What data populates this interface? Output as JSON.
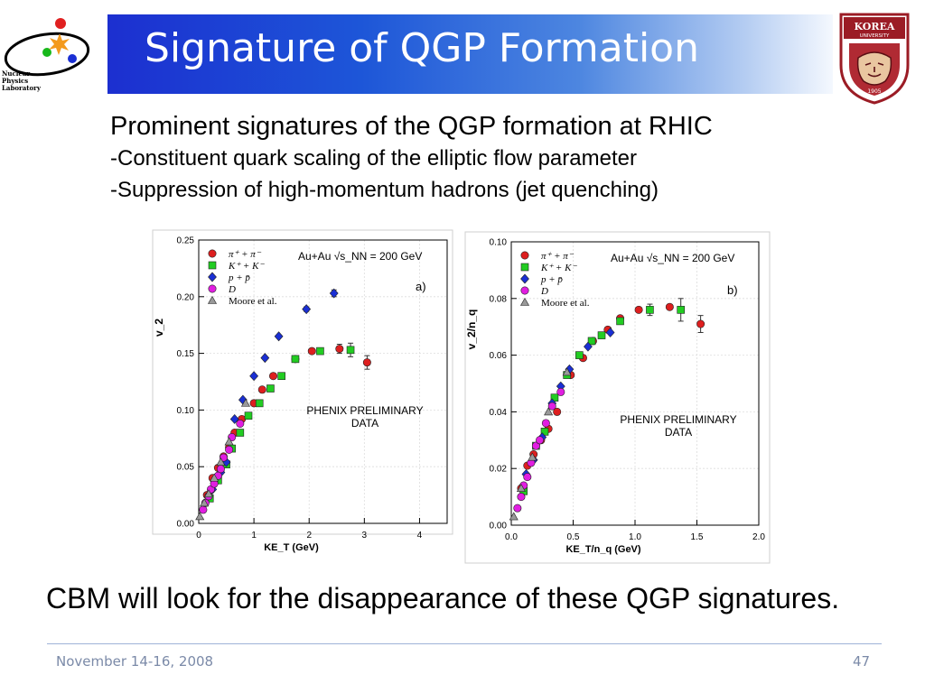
{
  "header": {
    "title": "Signature of QGP Formation",
    "logo_left_lines": [
      "Nuclear",
      "Physics",
      "Laboratory"
    ],
    "logo_right_top": "KOREA",
    "logo_right_sub": "UNIVERSITY",
    "logo_right_year": "1905"
  },
  "body": {
    "line1": "Prominent signatures of the QGP formation at RHIC",
    "line2": "-Constituent quark scaling of the elliptic flow parameter",
    "line3": "-Suppression of high-momentum hadrons (jet quenching)",
    "conclusion": "CBM will look for the disappearance of these QGP signatures."
  },
  "footer": {
    "date": "November 14-16, 2008",
    "page": "47"
  },
  "colors": {
    "pion": "#dd1f1f",
    "kaon": "#22cc22",
    "proton": "#1a2fd4",
    "dmeson": "#e11ee1",
    "moore": "#999999",
    "title_bg": "#1d4ed8"
  },
  "chart_data": [
    {
      "type": "scatter",
      "panel_label": "a)",
      "title": "Au+Au  √s_NN = 200 GeV",
      "annotation": [
        "PHENIX PRELIMINARY",
        "DATA"
      ],
      "xlabel": "KE_T (GeV)",
      "ylabel": "v_2",
      "xlim": [
        0,
        4.5
      ],
      "ylim": [
        0,
        0.25
      ],
      "xticks": [
        "0",
        "1",
        "2",
        "3",
        "4"
      ],
      "yticks": [
        "0.00",
        "0.05",
        "0.10",
        "0.15",
        "0.20",
        "0.25"
      ],
      "xtick_values": [
        0,
        1,
        2,
        3,
        4
      ],
      "ytick_values": [
        0,
        0.05,
        0.1,
        0.15,
        0.2,
        0.25
      ],
      "legend_position": "top-left",
      "series": [
        {
          "name": "π⁺ + π⁻",
          "marker": "circle",
          "color": "#dd1f1f",
          "x": [
            0.15,
            0.25,
            0.35,
            0.45,
            0.55,
            0.65,
            0.78,
            1.0,
            1.15,
            1.35,
            1.75,
            2.05,
            2.55,
            3.05
          ],
          "y": [
            0.025,
            0.04,
            0.049,
            0.059,
            0.067,
            0.08,
            0.092,
            0.106,
            0.118,
            0.13,
            0.145,
            0.152,
            0.154,
            0.142
          ],
          "err": [
            0,
            0,
            0,
            0,
            0,
            0,
            0,
            0,
            0,
            0,
            0,
            0,
            0.004,
            0.006
          ]
        },
        {
          "name": "K⁺ + K⁻",
          "marker": "square",
          "color": "#22cc22",
          "x": [
            0.2,
            0.35,
            0.5,
            0.6,
            0.75,
            0.9,
            1.1,
            1.3,
            1.5,
            1.75,
            2.2,
            2.75
          ],
          "y": [
            0.022,
            0.038,
            0.052,
            0.066,
            0.08,
            0.095,
            0.106,
            0.119,
            0.13,
            0.145,
            0.152,
            0.153
          ],
          "err": [
            0,
            0,
            0,
            0,
            0,
            0,
            0,
            0,
            0,
            0,
            0,
            0.006
          ]
        },
        {
          "name": "p + p̄",
          "marker": "diamond",
          "color": "#1a2fd4",
          "x": [
            0.25,
            0.4,
            0.5,
            0.65,
            0.8,
            1.0,
            1.2,
            1.45,
            1.95,
            2.45
          ],
          "y": [
            0.03,
            0.045,
            0.054,
            0.092,
            0.109,
            0.13,
            0.146,
            0.165,
            0.189,
            0.203
          ],
          "err": [
            0,
            0,
            0,
            0,
            0,
            0,
            0,
            0,
            0.002,
            0.003
          ]
        },
        {
          "name": "D",
          "marker": "circle",
          "color": "#e11ee1",
          "x": [
            0.08,
            0.12,
            0.18,
            0.22,
            0.28,
            0.35,
            0.4,
            0.45,
            0.55,
            0.6,
            0.75
          ],
          "y": [
            0.012,
            0.018,
            0.024,
            0.03,
            0.035,
            0.042,
            0.048,
            0.058,
            0.065,
            0.076,
            0.088
          ],
          "err": [
            0,
            0,
            0,
            0,
            0,
            0,
            0,
            0,
            0,
            0,
            0
          ]
        },
        {
          "name": "Moore  et al.",
          "marker": "triangle",
          "color": "#999999",
          "x": [
            0.02,
            0.1,
            0.18,
            0.28,
            0.4,
            0.55,
            0.85
          ],
          "y": [
            0.006,
            0.018,
            0.026,
            0.04,
            0.054,
            0.072,
            0.106
          ],
          "err": [
            0,
            0,
            0,
            0,
            0,
            0,
            0
          ]
        }
      ]
    },
    {
      "type": "scatter",
      "panel_label": "b)",
      "title": "Au+Au  √s_NN = 200 GeV",
      "annotation": [
        "PHENIX PRELIMINARY",
        "DATA"
      ],
      "xlabel": "KE_T/n_q (GeV)",
      "ylabel": "v_2/n_q",
      "xlim": [
        0,
        2.0
      ],
      "ylim": [
        0,
        0.1
      ],
      "xticks": [
        "0.0",
        "0.5",
        "1.0",
        "1.5",
        "2.0"
      ],
      "yticks": [
        "0.00",
        "0.02",
        "0.04",
        "0.06",
        "0.08",
        "0.10"
      ],
      "xtick_values": [
        0,
        0.5,
        1.0,
        1.5,
        2.0
      ],
      "ytick_values": [
        0,
        0.02,
        0.04,
        0.06,
        0.08,
        0.1
      ],
      "legend_position": "top-left",
      "series": [
        {
          "name": "π⁺ + π⁻",
          "marker": "circle",
          "color": "#dd1f1f",
          "x": [
            0.08,
            0.13,
            0.18,
            0.24,
            0.3,
            0.37,
            0.48,
            0.58,
            0.66,
            0.78,
            0.88,
            1.03,
            1.28,
            1.53
          ],
          "y": [
            0.013,
            0.021,
            0.025,
            0.03,
            0.034,
            0.04,
            0.053,
            0.059,
            0.065,
            0.069,
            0.073,
            0.076,
            0.077,
            0.071
          ],
          "err": [
            0,
            0,
            0,
            0,
            0,
            0,
            0,
            0,
            0,
            0,
            0,
            0,
            0,
            0.003
          ]
        },
        {
          "name": "K⁺ + K⁻",
          "marker": "square",
          "color": "#22cc22",
          "x": [
            0.1,
            0.2,
            0.27,
            0.35,
            0.45,
            0.55,
            0.65,
            0.73,
            0.88,
            1.12,
            1.37
          ],
          "y": [
            0.012,
            0.028,
            0.033,
            0.045,
            0.053,
            0.06,
            0.065,
            0.067,
            0.072,
            0.076,
            0.076
          ],
          "err": [
            0,
            0,
            0,
            0,
            0,
            0,
            0,
            0,
            0,
            0.002,
            0.004
          ]
        },
        {
          "name": "p + p̄",
          "marker": "diamond",
          "color": "#1a2fd4",
          "x": [
            0.12,
            0.18,
            0.25,
            0.33,
            0.4,
            0.47,
            0.62,
            0.8
          ],
          "y": [
            0.018,
            0.023,
            0.031,
            0.043,
            0.049,
            0.055,
            0.063,
            0.068
          ],
          "err": [
            0,
            0,
            0,
            0,
            0,
            0,
            0,
            0
          ]
        },
        {
          "name": "D",
          "marker": "circle",
          "color": "#e11ee1",
          "x": [
            0.05,
            0.08,
            0.1,
            0.13,
            0.16,
            0.2,
            0.23,
            0.28,
            0.33,
            0.4
          ],
          "y": [
            0.006,
            0.01,
            0.014,
            0.017,
            0.022,
            0.028,
            0.03,
            0.036,
            0.042,
            0.047
          ],
          "err": [
            0,
            0,
            0,
            0,
            0,
            0,
            0,
            0,
            0,
            0
          ]
        },
        {
          "name": "Moore  et al.",
          "marker": "triangle",
          "color": "#999999",
          "x": [
            0.02,
            0.08,
            0.17,
            0.3,
            0.45
          ],
          "y": [
            0.003,
            0.013,
            0.024,
            0.04,
            0.054
          ],
          "err": [
            0,
            0,
            0,
            0,
            0
          ]
        }
      ]
    }
  ]
}
